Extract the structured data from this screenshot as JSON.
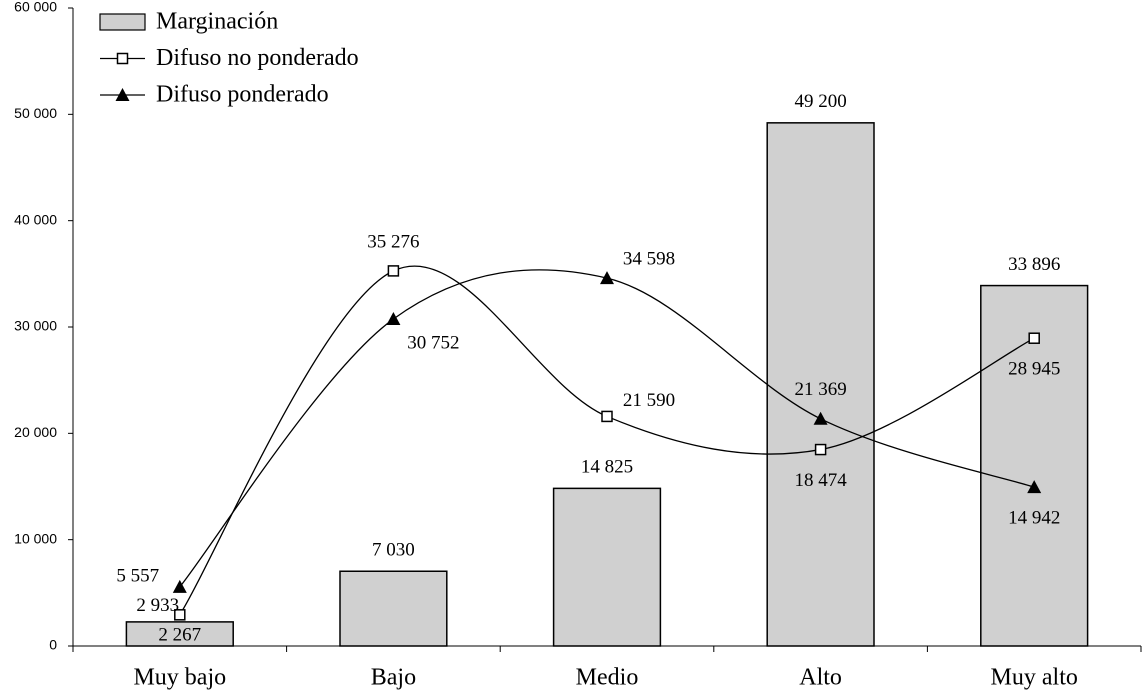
{
  "chart_data": {
    "type": "bar",
    "categories": [
      "Muy bajo",
      "Bajo",
      "Medio",
      "Alto",
      "Muy alto"
    ],
    "series": [
      {
        "name": "Marginación",
        "type": "bar",
        "color": "#d0d0d0",
        "values": [
          2267,
          7030,
          14825,
          49200,
          33896
        ],
        "value_labels": [
          "2 267",
          "7 030",
          "14 825",
          "49 200",
          "33 896"
        ]
      },
      {
        "name": "Difuso no ponderado",
        "type": "line",
        "marker": "square",
        "smooth": true,
        "color": "#000000",
        "values": [
          2933,
          35276,
          21590,
          18474,
          28945
        ],
        "value_labels": [
          "2 933",
          "35 276",
          "21 590",
          "18 474",
          "28 945"
        ]
      },
      {
        "name": "Difuso ponderado",
        "type": "line",
        "marker": "triangle",
        "smooth": true,
        "color": "#000000",
        "values": [
          5557,
          30752,
          34598,
          21369,
          14942
        ],
        "value_labels": [
          "5 557",
          "30 752",
          "34 598",
          "21 369",
          "14 942"
        ]
      }
    ],
    "ylim": [
      0,
      60000
    ],
    "yticks": [
      0,
      {
        "value": 10000,
        "label": "10 000"
      },
      {
        "value": 20000,
        "label": "20 000"
      },
      {
        "value": 30000,
        "label": "30 000"
      },
      {
        "value": 40000,
        "label": "40 000"
      },
      {
        "value": 50000,
        "label": "50 000"
      },
      {
        "value": 60000,
        "label": "60 000"
      }
    ],
    "legend": "top-left"
  }
}
